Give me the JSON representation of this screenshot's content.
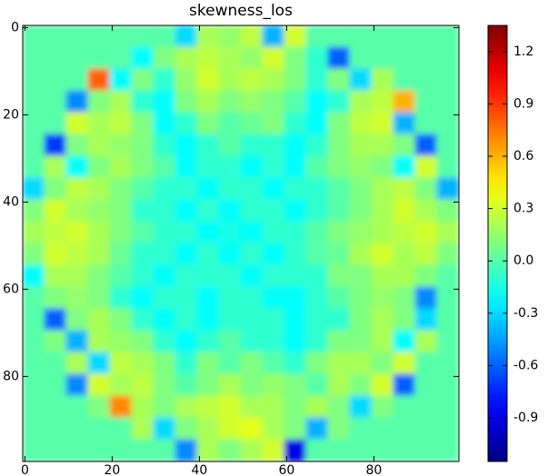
{
  "chart_data": {
    "type": "heatmap",
    "title": "skewness_los",
    "colormap": "jet",
    "xlim": [
      -0.5,
      99.5
    ],
    "ylim": [
      99.5,
      -0.5
    ],
    "xticks": [
      0,
      20,
      40,
      60,
      80
    ],
    "yticks": [
      0,
      20,
      40,
      60,
      80
    ],
    "clim": [
      -1.15,
      1.35
    ],
    "cticks": [
      -0.9,
      -0.6,
      -0.3,
      {
        "value": 0,
        "label": "0.0"
      },
      0.3,
      0.6,
      0.9,
      1.2
    ],
    "z": [
      [
        0,
        0,
        0,
        0,
        0,
        0,
        0,
        -0.3,
        0.2,
        0.15,
        0.25,
        -0.4,
        0.3,
        0,
        0,
        0,
        0,
        0,
        0,
        0
      ],
      [
        0,
        0,
        0,
        0,
        0,
        -0.2,
        0.1,
        0.2,
        0.25,
        0.2,
        0.15,
        0.3,
        0.1,
        -0.1,
        -0.6,
        0,
        0,
        0,
        0,
        0
      ],
      [
        0,
        0,
        0,
        0.8,
        -0.2,
        0.1,
        -0.1,
        0.15,
        0.3,
        0.2,
        0.25,
        0.2,
        0.1,
        -0.1,
        0.1,
        -0.3,
        0.2,
        0,
        0,
        0
      ],
      [
        0,
        0,
        -0.5,
        0.1,
        0.2,
        -0.1,
        -0.2,
        0.1,
        0.2,
        0.1,
        0.15,
        0.1,
        0,
        -0.2,
        -0.1,
        0.2,
        0.25,
        0.6,
        0,
        0
      ],
      [
        0,
        0,
        0.3,
        0.2,
        0.25,
        0.1,
        -0.2,
        -0.1,
        0.1,
        0,
        0.05,
        0.1,
        -0.1,
        -0.2,
        0.1,
        0.25,
        0.3,
        -0.4,
        0,
        0
      ],
      [
        0,
        -0.7,
        0.1,
        0.2,
        0.15,
        0.1,
        -0.1,
        -0.2,
        -0.1,
        0,
        -0.1,
        -0.1,
        -0.2,
        -0.1,
        0.1,
        0.2,
        0.2,
        0.1,
        -0.6,
        0
      ],
      [
        0,
        0.2,
        -0.2,
        0.1,
        0.2,
        0.1,
        0,
        -0.2,
        -0.1,
        -0.1,
        -0.2,
        -0.1,
        -0.2,
        0,
        0.1,
        0.15,
        0.1,
        -0.2,
        0.3,
        0
      ],
      [
        -0.3,
        0.1,
        0.25,
        0.2,
        0.1,
        0,
        -0.1,
        -0.1,
        -0.2,
        -0.1,
        -0.1,
        -0.2,
        -0.1,
        -0.1,
        0,
        0.1,
        0.2,
        0.25,
        0.1,
        -0.4
      ],
      [
        0.1,
        0.3,
        0.2,
        0.15,
        0.1,
        -0.1,
        -0.1,
        -0.2,
        -0.1,
        -0.2,
        -0.1,
        -0.1,
        -0.2,
        -0.1,
        0,
        0.1,
        0.2,
        0.3,
        0.2,
        0.1
      ],
      [
        0.2,
        0.25,
        0.3,
        0.2,
        0.1,
        0,
        -0.1,
        -0.1,
        -0.2,
        -0.15,
        -0.2,
        -0.1,
        -0.1,
        0,
        0.1,
        0.15,
        0.2,
        0.25,
        0.3,
        0.2
      ],
      [
        0.1,
        0.3,
        0.25,
        0.2,
        0.05,
        -0.1,
        -0.1,
        -0.2,
        -0.1,
        -0.2,
        -0.1,
        -0.2,
        -0.1,
        0,
        0.05,
        0.2,
        0.3,
        0.2,
        0.25,
        0.1
      ],
      [
        -0.2,
        0.2,
        0.2,
        0.1,
        0,
        -0.1,
        -0.2,
        -0.1,
        -0.1,
        -0.1,
        -0.2,
        -0.1,
        -0.1,
        -0.1,
        0.1,
        0.1,
        0.2,
        0.2,
        0.1,
        0
      ],
      [
        0,
        0.1,
        0.15,
        0.1,
        -0.1,
        -0.2,
        -0.1,
        -0.1,
        -0.2,
        -0.1,
        -0.1,
        -0.2,
        -0.2,
        -0.1,
        0,
        0.1,
        0.15,
        0.1,
        -0.5,
        0
      ],
      [
        0,
        -0.6,
        0.1,
        0.2,
        0.1,
        -0.1,
        -0.2,
        -0.1,
        -0.2,
        -0.1,
        -0.1,
        -0.1,
        -0.2,
        -0.1,
        -0.1,
        0.1,
        0.2,
        0.1,
        -0.3,
        0
      ],
      [
        0,
        0.1,
        -0.4,
        0.2,
        0.15,
        0.1,
        -0.1,
        -0.2,
        -0.1,
        0,
        -0.1,
        -0.1,
        -0.2,
        -0.1,
        0.1,
        0.1,
        0.2,
        -0.2,
        0.2,
        0
      ],
      [
        0,
        0,
        0.2,
        -0.3,
        0.25,
        0.2,
        0.1,
        -0.1,
        0.1,
        0,
        0.1,
        0,
        -0.1,
        0.1,
        0.2,
        0.2,
        0.1,
        0.3,
        0,
        0
      ],
      [
        0,
        0,
        -0.5,
        0.3,
        0.2,
        0.25,
        0.1,
        0,
        0.1,
        0.2,
        0.1,
        0.15,
        0.1,
        0,
        0.2,
        0.1,
        0.3,
        -0.6,
        0,
        0
      ],
      [
        0,
        0,
        0,
        0.1,
        0.7,
        0.2,
        0.1,
        0.2,
        0.25,
        0.3,
        0.2,
        0.2,
        0.1,
        0.2,
        0.1,
        -0.3,
        0.1,
        0,
        0,
        0
      ],
      [
        0,
        0,
        0,
        0,
        0,
        0.2,
        -0.3,
        0.1,
        0.2,
        0.3,
        0.35,
        0.2,
        0.1,
        -0.4,
        0.1,
        0,
        0,
        0,
        0,
        0
      ],
      [
        0,
        0,
        0,
        0,
        0,
        0,
        0,
        -0.5,
        0.2,
        0.1,
        0.2,
        0.3,
        -0.9,
        0,
        0,
        0,
        0,
        0,
        0,
        0
      ]
    ]
  }
}
